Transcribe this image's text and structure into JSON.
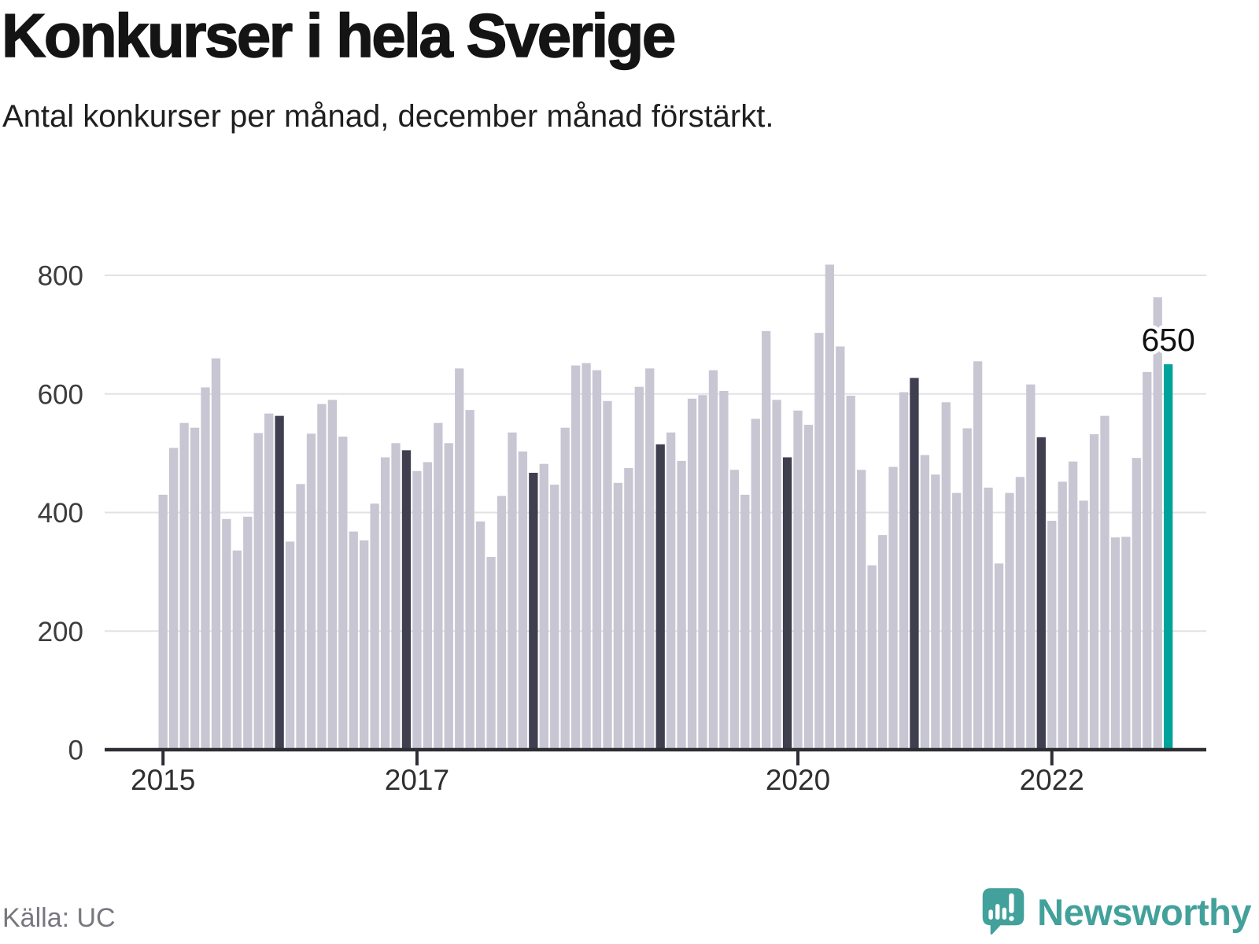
{
  "header": {
    "title": "Konkurser i hela Sverige",
    "subtitle": "Antal konkurser per månad, december månad förstärkt."
  },
  "chart_data": {
    "type": "bar",
    "title": "Konkurser i hela Sverige",
    "subtitle": "Antal konkurser per månad, december månad förstärkt.",
    "period": {
      "start": "2015-01",
      "end": "2022-12",
      "interval": "month"
    },
    "values": [
      430,
      509,
      551,
      543,
      611,
      660,
      389,
      336,
      393,
      534,
      567,
      563,
      351,
      448,
      533,
      583,
      590,
      528,
      368,
      353,
      415,
      493,
      517,
      505,
      470,
      485,
      551,
      517,
      643,
      573,
      385,
      325,
      428,
      535,
      503,
      467,
      482,
      447,
      543,
      648,
      652,
      640,
      588,
      450,
      475,
      612,
      643,
      515,
      535,
      487,
      592,
      598,
      640,
      605,
      472,
      430,
      558,
      706,
      590,
      493,
      572,
      548,
      703,
      818,
      680,
      597,
      472,
      311,
      362,
      477,
      603,
      627,
      497,
      464,
      586,
      433,
      542,
      655,
      442,
      314,
      433,
      460,
      616,
      527,
      386,
      452,
      486,
      420,
      532,
      563,
      358,
      359,
      492,
      637,
      763,
      650
    ],
    "december_emphasized": true,
    "latest_bar_highlighted": true,
    "annotation": {
      "label": "650",
      "month": "2022-12",
      "index": 95
    },
    "xlabel": "",
    "ylabel": "",
    "ylim": [
      0,
      800
    ],
    "yticks": [
      0,
      200,
      400,
      600,
      800
    ],
    "xticks": [
      {
        "label": "2015",
        "index": 0
      },
      {
        "label": "2017",
        "index": 24
      },
      {
        "label": "2020",
        "index": 60
      },
      {
        "label": "2022",
        "index": 84
      }
    ],
    "grid": "horizontal",
    "legend": "none",
    "colors": {
      "bar_default": "#c8c6d2",
      "bar_december": "#3f3f50",
      "bar_latest": "#00a39a",
      "gridline": "#e2e1e6",
      "axis": "#2e2e35",
      "tick_label": "#3c3c3c",
      "annotation_text": "#111111"
    }
  },
  "footer": {
    "source": "Källa: UC",
    "brand": "Newsworthy",
    "brand_color": "#43a19b"
  }
}
